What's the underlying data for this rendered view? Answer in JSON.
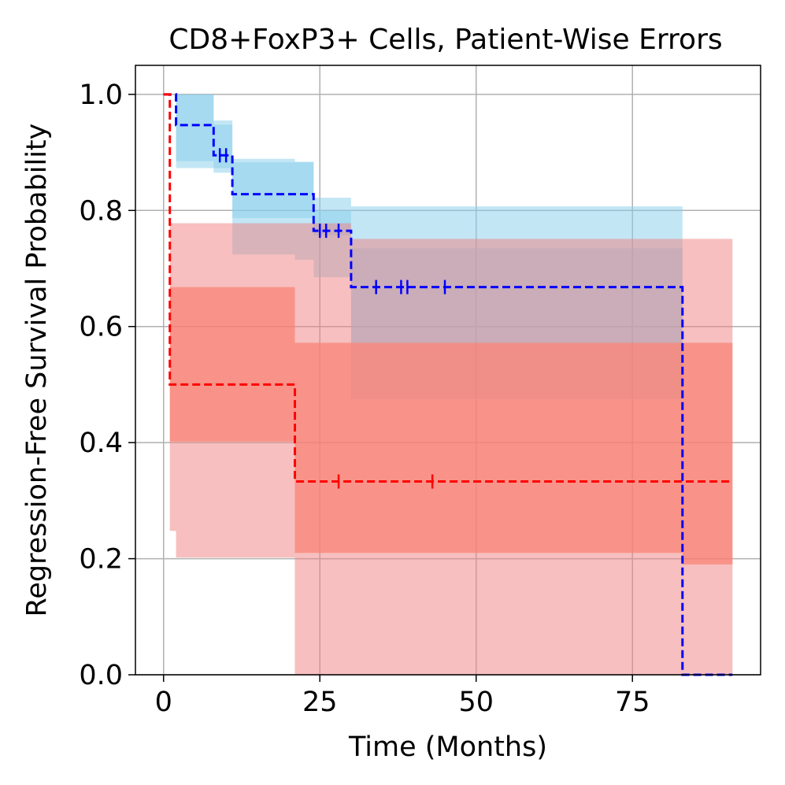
{
  "chart_data": {
    "type": "line",
    "title": "CD8+FoxP3+ Cells, Patient-Wise Errors",
    "xlabel": "Time (Months)",
    "ylabel": "Regression-Free Survival Probability",
    "xlim": [
      -4.5,
      95.5
    ],
    "ylim": [
      0,
      1.05
    ],
    "grid": true,
    "xticks": [
      0,
      25,
      50,
      75
    ],
    "xtick_labels": [
      "0",
      "25",
      "50",
      "75"
    ],
    "yticks": [
      0.0,
      0.2,
      0.4,
      0.6,
      0.8,
      1.0
    ],
    "ytick_labels": [
      "0.0",
      "0.2",
      "0.4",
      "0.6",
      "0.8",
      "1.0"
    ],
    "series": [
      {
        "name": "blue",
        "color": "#0000ff",
        "steps": [
          [
            0,
            1.0
          ],
          [
            2,
            0.947
          ],
          [
            8,
            0.895
          ],
          [
            11,
            0.828
          ],
          [
            24,
            0.765
          ],
          [
            30,
            0.668
          ],
          [
            83,
            0.0
          ],
          [
            91,
            0.0
          ]
        ],
        "censored": [
          [
            9,
            0.895
          ],
          [
            10,
            0.895
          ],
          [
            25,
            0.765
          ],
          [
            26,
            0.765
          ],
          [
            28,
            0.765
          ],
          [
            34,
            0.668
          ],
          [
            38,
            0.668
          ],
          [
            39,
            0.668
          ],
          [
            45,
            0.668
          ]
        ],
        "bands": [
          {
            "color": "#87ceeb",
            "opacity": 0.5,
            "steps": [
              [
                0,
                1.0,
                1.0
              ],
              [
                2,
                0.873,
                1.0
              ],
              [
                8,
                0.873,
                0.948
              ],
              [
                11,
                0.787,
                0.883
              ],
              [
                24,
                0.757,
                0.822
              ],
              [
                30,
                0.572,
                0.807
              ],
              [
                83,
                0.0,
                0.0
              ],
              [
                91,
                0.0,
                0.0
              ]
            ]
          },
          {
            "color": "#87ceeb",
            "opacity": 0.5,
            "steps": [
              [
                0,
                1.0,
                1.0
              ],
              [
                2,
                0.885,
                1.0
              ],
              [
                8,
                0.865,
                0.955
              ],
              [
                11,
                0.724,
                0.889
              ],
              [
                21,
                0.715,
                0.884
              ],
              [
                24,
                0.685,
                0.8
              ],
              [
                30,
                0.475,
                0.735
              ],
              [
                83,
                0.0,
                0.0
              ],
              [
                91,
                0.0,
                0.0
              ]
            ]
          }
        ]
      },
      {
        "name": "red",
        "color": "#ff0000",
        "steps": [
          [
            0,
            1.0
          ],
          [
            1,
            0.5
          ],
          [
            21,
            0.333
          ],
          [
            91,
            0.333
          ]
        ],
        "censored": [
          [
            28,
            0.333
          ],
          [
            43,
            0.333
          ]
        ],
        "bands": [
          {
            "color": "#f08080",
            "opacity": 0.5,
            "steps": [
              [
                0,
                1.0,
                1.0
              ],
              [
                1,
                0.248,
                0.778
              ],
              [
                2,
                0.202,
                0.778
              ],
              [
                21,
                0.0,
                0.778
              ],
              [
                30,
                0.0,
                0.751
              ],
              [
                91,
                0.0,
                0.751
              ]
            ]
          },
          {
            "color": "#fa8072",
            "opacity": 0.7,
            "steps": [
              [
                0,
                1.0,
                1.0
              ],
              [
                1,
                0.402,
                0.668
              ],
              [
                21,
                0.21,
                0.572
              ],
              [
                83,
                0.19,
                0.572
              ],
              [
                91,
                0.19,
                0.572
              ]
            ]
          }
        ]
      }
    ]
  }
}
